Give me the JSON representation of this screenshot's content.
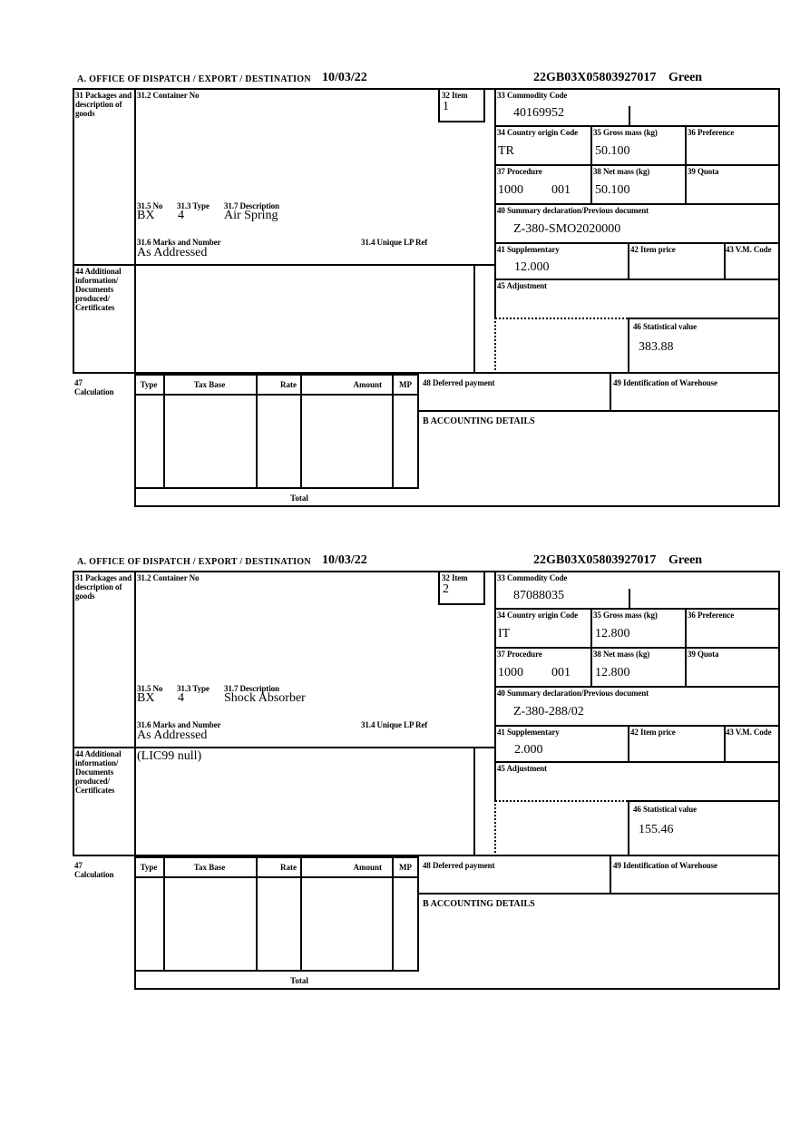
{
  "header": {
    "title": "A.  OFFICE OF DISPATCH / EXPORT / DESTINATION",
    "date": "10/03/22",
    "reference": "22GB03X05803927017",
    "status": "Green"
  },
  "labels": {
    "packages": "31 Packages and description of goods",
    "container_no": "31.2 Container No",
    "item": "32 Item",
    "commodity_code": "33 Commodity Code",
    "country_origin": "34 Country origin Code",
    "gross_mass": "35 Gross mass (kg)",
    "preference": "36 Preference",
    "procedure": "37 Procedure",
    "net_mass": "38 Net mass (kg)",
    "quota": "39 Quota",
    "pkg_no": "31.5 No",
    "pkg_type": "31.3 Type",
    "pkg_description": "31.7 Description",
    "marks": "31.6 Marks and Number",
    "unique_lp_ref": "31.4 Unique LP Ref",
    "summary_declaration": "40 Summary declaration/Previous document",
    "supplementary": "41 Supplementary",
    "item_price": "42 Item price",
    "vm_code": "43 V.M. Code",
    "additional": "44 Additional information/ Documents produced/ Certificates",
    "adjustment": "45 Adjustment",
    "statistical_value": "46 Statistical value",
    "calculation": "47 Calculation",
    "deferred_payment": "48 Deferred payment",
    "warehouse": "49 Identification of Warehouse",
    "accounting": "B ACCOUNTING DETAILS",
    "total": "Total",
    "col_type": "Type",
    "col_tax_base": "Tax Base",
    "col_rate": "Rate",
    "col_amount": "Amount",
    "col_mp": "MP"
  },
  "forms": [
    {
      "item_number": "1",
      "container_no": "",
      "commodity_code": "40169952",
      "country_origin_code": "TR",
      "gross_mass_kg": "50.100",
      "preference": "",
      "procedure_1": "1000",
      "procedure_2": "001",
      "net_mass_kg": "50.100",
      "quota": "",
      "packages_no": "BX",
      "packages_type": "4",
      "description": "Air Spring",
      "marks_and_number": "As Addressed",
      "unique_lp_ref": "",
      "summary_declaration": "Z-380-SMO2020000",
      "supplementary": "12.000",
      "item_price": "",
      "vm_code": "",
      "adjustment": "",
      "statistical_value": "383.88",
      "additional_information": ""
    },
    {
      "item_number": "2",
      "container_no": "",
      "commodity_code": "87088035",
      "country_origin_code": "IT",
      "gross_mass_kg": "12.800",
      "preference": "",
      "procedure_1": "1000",
      "procedure_2": "001",
      "net_mass_kg": "12.800",
      "quota": "",
      "packages_no": "BX",
      "packages_type": "4",
      "description": "Shock Absorber",
      "marks_and_number": "As Addressed",
      "unique_lp_ref": "",
      "summary_declaration": "Z-380-288/02",
      "supplementary": "2.000",
      "item_price": "",
      "vm_code": "",
      "adjustment": "",
      "statistical_value": "155.46",
      "additional_information": "(LIC99 null)"
    }
  ]
}
